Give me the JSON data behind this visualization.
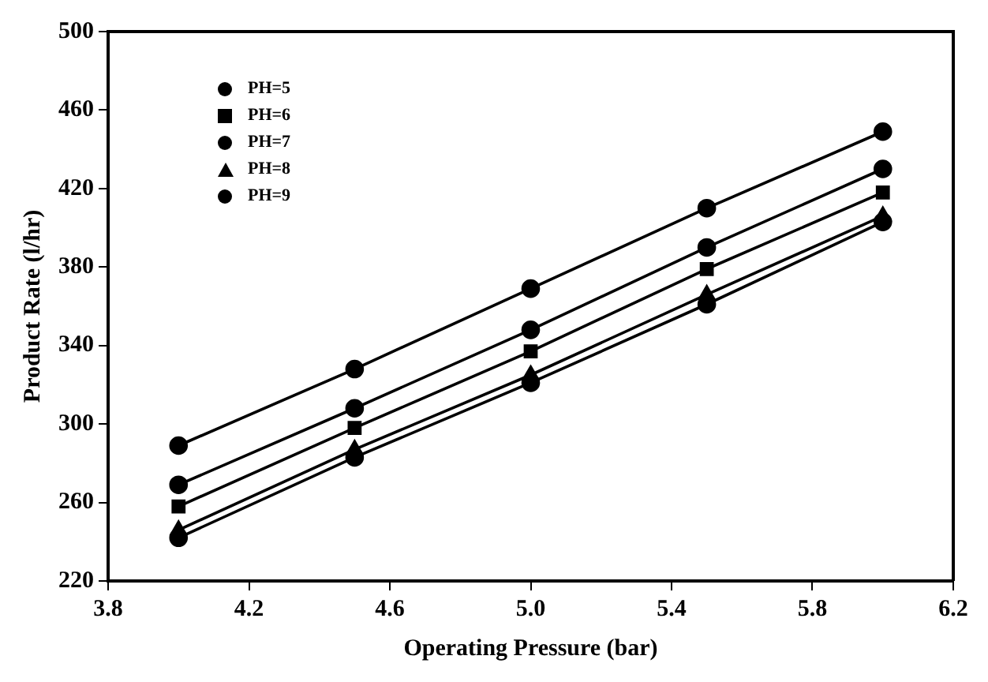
{
  "chart_data": {
    "type": "line",
    "xlabel": "Operating Pressure (bar)",
    "ylabel": "Product Rate (l/hr)",
    "x": [
      4.0,
      4.5,
      5.0,
      5.5,
      6.0
    ],
    "series": [
      {
        "name": "PH=5",
        "color": "#000000",
        "marker": "circle",
        "values": [
          289,
          328,
          369,
          410,
          449
        ]
      },
      {
        "name": "PH=6",
        "color": "#000000",
        "marker": "square",
        "values": [
          258,
          298,
          337,
          379,
          418
        ]
      },
      {
        "name": "PH=7",
        "color": "#000000",
        "marker": "circle",
        "values": [
          269,
          308,
          348,
          390,
          430
        ]
      },
      {
        "name": "PH=8",
        "color": "#000000",
        "marker": "triangle",
        "values": [
          246,
          287,
          325,
          366,
          406
        ]
      },
      {
        "name": "PH=9",
        "color": "#000000",
        "marker": "circle",
        "values": [
          242,
          283,
          321,
          361,
          403
        ]
      }
    ],
    "xlim": [
      3.8,
      6.2
    ],
    "xticks": [
      3.8,
      4.2,
      4.6,
      {
        "value": 5,
        "label": "5.0"
      },
      5.4,
      5.8,
      6.2
    ],
    "ylim": [
      220,
      500
    ],
    "yticks": [
      220,
      260,
      300,
      340,
      380,
      420,
      460,
      500
    ],
    "grid": false,
    "legend": "top left",
    "line_style": "solid"
  }
}
